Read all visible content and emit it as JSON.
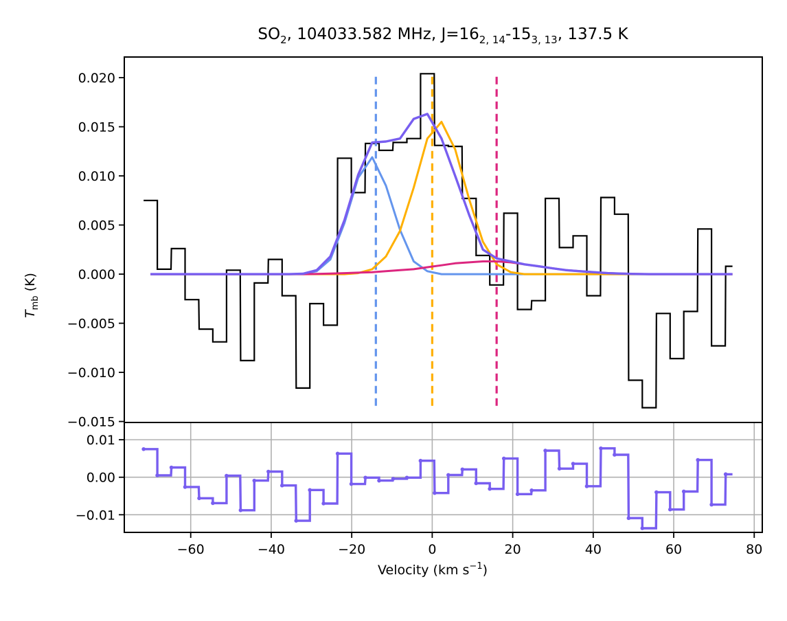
{
  "chart_data": {
    "type": "line",
    "title": {
      "species": "SO",
      "species_sub": "2",
      "freq": ", 104033.582 MHz, J=16",
      "jup_sub": "2, 14",
      "sep": "-15",
      "jlo_sub": "3, 13",
      "temp": ", 137.5 K"
    },
    "xlabel": {
      "main": "Velocity (km s",
      "sup": "−1",
      "close": ")"
    },
    "ylabel": {
      "main": "T",
      "sub": "mb",
      "units": " (K)"
    },
    "xlim": [
      -76.5,
      82.0
    ],
    "main_ylim": [
      -0.0151,
      0.0221
    ],
    "resid_ylim": [
      -0.0147,
      0.0146
    ],
    "x_ticks": [
      {
        "value": -60,
        "label": "−60"
      },
      {
        "value": -40,
        "label": "−40"
      },
      {
        "value": -20,
        "label": "−20"
      },
      {
        "value": 0,
        "label": "0"
      },
      {
        "value": 20,
        "label": "20"
      },
      {
        "value": 40,
        "label": "40"
      },
      {
        "value": 60,
        "label": "60"
      },
      {
        "value": 80,
        "label": "80"
      }
    ],
    "main_y_ticks": [
      {
        "value": 0.02,
        "label": "0.020"
      },
      {
        "value": 0.015,
        "label": "0.015"
      },
      {
        "value": 0.01,
        "label": "0.010"
      },
      {
        "value": 0.005,
        "label": "0.005"
      },
      {
        "value": 0.0,
        "label": "0.000"
      },
      {
        "value": -0.005,
        "label": "−0.005"
      },
      {
        "value": -0.01,
        "label": "−0.010"
      },
      {
        "value": -0.015,
        "label": "−0.015"
      }
    ],
    "resid_y_ticks": [
      {
        "value": 0.01,
        "label": "0.01"
      },
      {
        "value": 0.0,
        "label": "0.00"
      },
      {
        "value": -0.01,
        "label": "−0.01"
      }
    ],
    "spectrum": {
      "color": "#000000",
      "x": [
        -70.0,
        -66.6,
        -63.1,
        -59.7,
        -56.2,
        -52.8,
        -49.4,
        -45.9,
        -42.5,
        -39.0,
        -35.6,
        -32.1,
        -28.7,
        -25.3,
        -21.8,
        -18.4,
        -14.9,
        -11.5,
        -8.0,
        -4.6,
        -1.2,
        2.3,
        5.7,
        9.2,
        12.6,
        16.0,
        19.5,
        22.9,
        26.4,
        29.8,
        33.3,
        36.7,
        40.1,
        43.6,
        47.0,
        50.5,
        53.9,
        57.4,
        60.8,
        64.2,
        67.7,
        71.1,
        74.6
      ],
      "y": [
        0.0075,
        0.0005,
        0.0026,
        -0.0026,
        -0.0056,
        -0.0069,
        0.0004,
        -0.0088,
        -0.0009,
        0.0015,
        -0.0022,
        -0.0116,
        -0.003,
        -0.0052,
        0.0118,
        0.0083,
        0.0133,
        0.0126,
        0.0134,
        0.0138,
        0.0204,
        0.0131,
        0.013,
        0.0077,
        0.0019,
        -0.0011,
        0.0062,
        -0.0036,
        -0.0027,
        0.0077,
        0.0027,
        0.0039,
        -0.0022,
        0.0078,
        0.0061,
        -0.0108,
        -0.0136,
        -0.004,
        -0.0086,
        -0.0038,
        0.0046,
        -0.0073,
        0.0008
      ]
    },
    "series": [
      {
        "name": "component-1",
        "color": "#6495ed",
        "x": [
          -70,
          -66.6,
          -63.1,
          -59.7,
          -56.2,
          -52.8,
          -49.4,
          -45.9,
          -42.5,
          -39.0,
          -35.6,
          -32.1,
          -28.7,
          -25.3,
          -21.8,
          -18.4,
          -14.9,
          -11.5,
          -8.0,
          -4.6,
          -1.2,
          2.3,
          5.7,
          9.2,
          12.6,
          16.0,
          19.5,
          22.9,
          26.4,
          29.8,
          33.3,
          36.7,
          40.1,
          43.6,
          47.0,
          50.5,
          53.9,
          57.4,
          60.8,
          64.2,
          67.7,
          71.1,
          74.6
        ],
        "y": [
          0,
          0,
          0,
          0,
          0,
          0,
          0,
          0,
          0,
          0,
          0,
          2e-05,
          0.0003,
          0.0015,
          0.0052,
          0.0098,
          0.0119,
          0.009,
          0.0045,
          0.0013,
          0.0003,
          0,
          0,
          0,
          0,
          0,
          0,
          0,
          0,
          0,
          0,
          0,
          0,
          0,
          0,
          0,
          0,
          0,
          0,
          0,
          0,
          0,
          0
        ]
      },
      {
        "name": "component-2",
        "color": "#ffb000",
        "x": [
          -70,
          -66.6,
          -63.1,
          -59.7,
          -56.2,
          -52.8,
          -49.4,
          -45.9,
          -42.5,
          -39.0,
          -35.6,
          -32.1,
          -28.7,
          -25.3,
          -21.8,
          -18.4,
          -14.9,
          -11.5,
          -8.0,
          -4.6,
          -1.2,
          2.3,
          5.7,
          9.2,
          12.6,
          16.0,
          19.5,
          22.9,
          26.4,
          29.8,
          33.3,
          36.7,
          40.1,
          43.6,
          47.0,
          50.5,
          53.9,
          57.4,
          60.8,
          64.2,
          67.7,
          71.1,
          74.6
        ],
        "y": [
          0,
          0,
          0,
          0,
          0,
          0,
          0,
          0,
          0,
          0,
          0,
          0,
          0,
          0,
          0,
          0.0001,
          0.0005,
          0.0018,
          0.0044,
          0.0088,
          0.0138,
          0.0155,
          0.0127,
          0.0076,
          0.0033,
          0.001,
          0.0002,
          0,
          0,
          0,
          0,
          0,
          0,
          0,
          0,
          0,
          0,
          0,
          0,
          0,
          0,
          0,
          0
        ]
      },
      {
        "name": "component-3",
        "color": "#dc267f",
        "x": [
          -70,
          -66.6,
          -63.1,
          -59.7,
          -56.2,
          -52.8,
          -49.4,
          -45.9,
          -42.5,
          -39.0,
          -35.6,
          -32.1,
          -28.7,
          -25.3,
          -21.8,
          -18.4,
          -14.9,
          -11.5,
          -8.0,
          -4.6,
          -1.2,
          2.3,
          5.7,
          9.2,
          12.6,
          16.0,
          19.5,
          22.9,
          26.4,
          29.8,
          33.3,
          36.7,
          40.1,
          43.6,
          47.0,
          50.5,
          53.9,
          57.4,
          60.8,
          64.2,
          67.7,
          71.1,
          74.6
        ],
        "y": [
          0,
          0,
          0,
          0,
          0,
          0,
          0,
          0,
          0,
          0,
          0,
          0,
          2e-05,
          5e-05,
          0.0001,
          0.00015,
          0.0002,
          0.0003,
          0.0004,
          0.0005,
          0.0007,
          0.0009,
          0.0011,
          0.0012,
          0.0013,
          0.0013,
          0.0012,
          0.001,
          0.0008,
          0.0006,
          0.0004,
          0.0003,
          0.0002,
          0.0001,
          5e-05,
          2e-05,
          0,
          0,
          0,
          0,
          0,
          0,
          0
        ]
      },
      {
        "name": "total-fit",
        "color": "#785ef0",
        "x": [
          -70,
          -66.6,
          -63.1,
          -59.7,
          -56.2,
          -52.8,
          -49.4,
          -45.9,
          -42.5,
          -39.0,
          -35.6,
          -32.1,
          -28.7,
          -25.3,
          -21.8,
          -18.4,
          -14.9,
          -11.5,
          -8.0,
          -4.6,
          -1.2,
          2.3,
          5.7,
          9.2,
          12.6,
          16.0,
          19.5,
          22.9,
          26.4,
          29.8,
          33.3,
          36.7,
          40.1,
          43.6,
          47.0,
          50.5,
          53.9,
          57.4,
          60.8,
          64.2,
          67.7,
          71.1,
          74.6
        ],
        "y": [
          0,
          0,
          0,
          0,
          0,
          0,
          0,
          0,
          0,
          0,
          0,
          4e-05,
          0.0004,
          0.0018,
          0.0055,
          0.0101,
          0.0134,
          0.0135,
          0.0138,
          0.0158,
          0.0163,
          0.0138,
          0.01,
          0.006,
          0.0025,
          0.0016,
          0.0013,
          0.001,
          0.0008,
          0.0006,
          0.0004,
          0.0003,
          0.0002,
          0.0001,
          5e-05,
          2e-05,
          0,
          0,
          0,
          0,
          0,
          0,
          0
        ]
      }
    ],
    "vlines": [
      {
        "name": "vline-blue",
        "x": -14.0,
        "color": "#6495ed",
        "ylim": [
          -0.0134,
          0.0202
        ]
      },
      {
        "name": "vline-orange",
        "x": 0.0,
        "color": "#ffb000",
        "ylim": [
          -0.0134,
          0.0202
        ]
      },
      {
        "name": "vline-magenta",
        "x": 16.0,
        "color": "#dc267f",
        "ylim": [
          -0.0134,
          0.0202
        ]
      }
    ],
    "residual": {
      "color": "#785ef0",
      "x": [
        -70.0,
        -66.6,
        -63.1,
        -59.7,
        -56.2,
        -52.8,
        -49.4,
        -45.9,
        -42.5,
        -39.0,
        -35.6,
        -32.1,
        -28.7,
        -25.3,
        -21.8,
        -18.4,
        -14.9,
        -11.5,
        -8.0,
        -4.6,
        -1.2,
        2.3,
        5.7,
        9.2,
        12.6,
        16.0,
        19.5,
        22.9,
        26.4,
        29.8,
        33.3,
        36.7,
        40.1,
        43.6,
        47.0,
        50.5,
        53.9,
        57.4,
        60.8,
        64.2,
        67.7,
        71.1,
        74.6
      ],
      "y": [
        0.0075,
        0.0005,
        0.0026,
        -0.0026,
        -0.0056,
        -0.0069,
        0.0004,
        -0.0088,
        -0.0009,
        0.0015,
        -0.0022,
        -0.0116,
        -0.0034,
        -0.007,
        0.0063,
        -0.0018,
        -0.0001,
        -0.0009,
        -0.0004,
        -0.0001,
        0.0044,
        -0.0042,
        0.0006,
        0.0021,
        -0.0016,
        -0.0031,
        0.005,
        -0.0045,
        -0.0035,
        0.0071,
        0.0023,
        0.0036,
        -0.0024,
        0.0077,
        0.006,
        -0.0109,
        -0.0136,
        -0.004,
        -0.0086,
        -0.0038,
        0.0046,
        -0.0073,
        0.0008
      ]
    }
  }
}
